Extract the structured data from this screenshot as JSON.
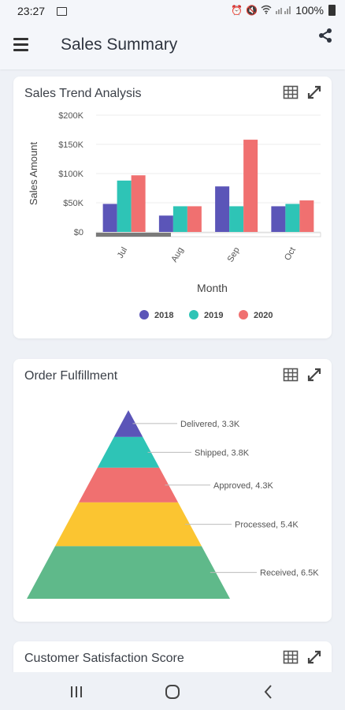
{
  "status_bar": {
    "time": "23:27",
    "battery": "100%",
    "icons": [
      "gallery-icon",
      "alarm-icon",
      "mute-icon",
      "wifi-icon",
      "signal-icon",
      "battery-icon"
    ]
  },
  "header": {
    "title": "Sales Summary",
    "menu_icon": "hamburger-menu-icon",
    "share_icon": "share-icon"
  },
  "cards": {
    "sales_trend": {
      "title": "Sales Trend Analysis",
      "tools": [
        "table-view-icon",
        "expand-icon"
      ]
    },
    "order_fulfillment": {
      "title": "Order Fulfillment",
      "tools": [
        "table-view-icon",
        "expand-icon"
      ]
    },
    "customer_satisfaction": {
      "title": "Customer Satisfaction Score",
      "tools": [
        "table-view-icon",
        "expand-icon"
      ]
    }
  },
  "chart_data": [
    {
      "type": "bar",
      "title": "Sales Trend Analysis",
      "xlabel": "Month",
      "ylabel": "Sales Amount",
      "categories": [
        "Jul",
        "Aug",
        "Sep",
        "Oct"
      ],
      "yticks": [
        "$0",
        "$50K",
        "$100K",
        "$150K",
        "$200K"
      ],
      "ylim": [
        0,
        200000
      ],
      "series": [
        {
          "name": "2018",
          "color": "#5b55b8",
          "values": [
            48000,
            28000,
            78000,
            44000
          ]
        },
        {
          "name": "2019",
          "color": "#2ec4b6",
          "values": [
            88000,
            44000,
            44000,
            48000
          ]
        },
        {
          "name": "2020",
          "color": "#f07070",
          "values": [
            97000,
            44000,
            158000,
            54000
          ]
        }
      ],
      "legend": "bottom",
      "grid": true,
      "scrollbar": true
    },
    {
      "type": "pyramid",
      "title": "Order Fulfillment",
      "segments": [
        {
          "label": "Delivered, 3.3K",
          "value": 3300,
          "color": "#5b55b8"
        },
        {
          "label": "Shipped, 3.8K",
          "value": 3800,
          "color": "#2ec4b6"
        },
        {
          "label": "Approved, 4.3K",
          "value": 4300,
          "color": "#f07070"
        },
        {
          "label": "Processed, 5.4K",
          "value": 5400,
          "color": "#fbc531"
        },
        {
          "label": "Received, 6.5K",
          "value": 6500,
          "color": "#5fb98a"
        }
      ]
    }
  ],
  "nav_bar": {
    "buttons": [
      "recents-icon",
      "home-icon",
      "back-icon"
    ]
  }
}
